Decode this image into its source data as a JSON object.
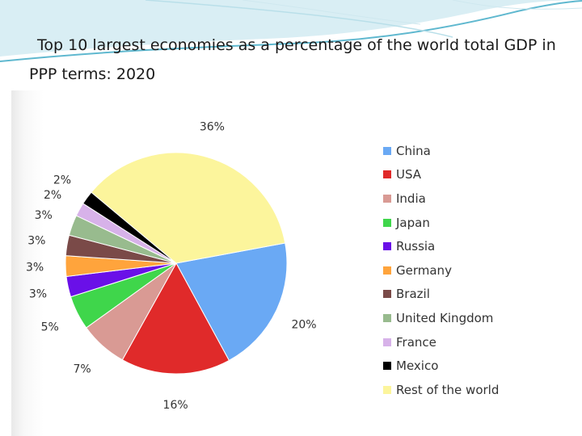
{
  "title": "Top 10 largest economies as a percentage of the world total GDP in PPP terms: 2020",
  "chart_data": {
    "type": "pie",
    "title": "Top 10 largest economies as a percentage of the world total GDP in PPP terms: 2020",
    "unit": "%",
    "legend_position": "right",
    "categories": [
      "China",
      "USA",
      "India",
      "Japan",
      "Russia",
      "Germany",
      "Brazil",
      "United Kingdom",
      "France",
      "Mexico",
      "Rest of the world"
    ],
    "values": [
      20,
      16,
      7,
      5,
      3,
      3,
      3,
      3,
      2,
      2,
      36
    ],
    "labels": [
      "20%",
      "16%",
      "7%",
      "5%",
      "3%",
      "3%",
      "3%",
      "3%",
      "2%",
      "2%",
      "36%"
    ],
    "colors": [
      "#6aa9f4",
      "#e02a2a",
      "#d99a94",
      "#3fd64b",
      "#6a10e8",
      "#ffa43c",
      "#7a4a48",
      "#98bb8e",
      "#d7b2e9",
      "#000000",
      "#fcf59c"
    ]
  }
}
